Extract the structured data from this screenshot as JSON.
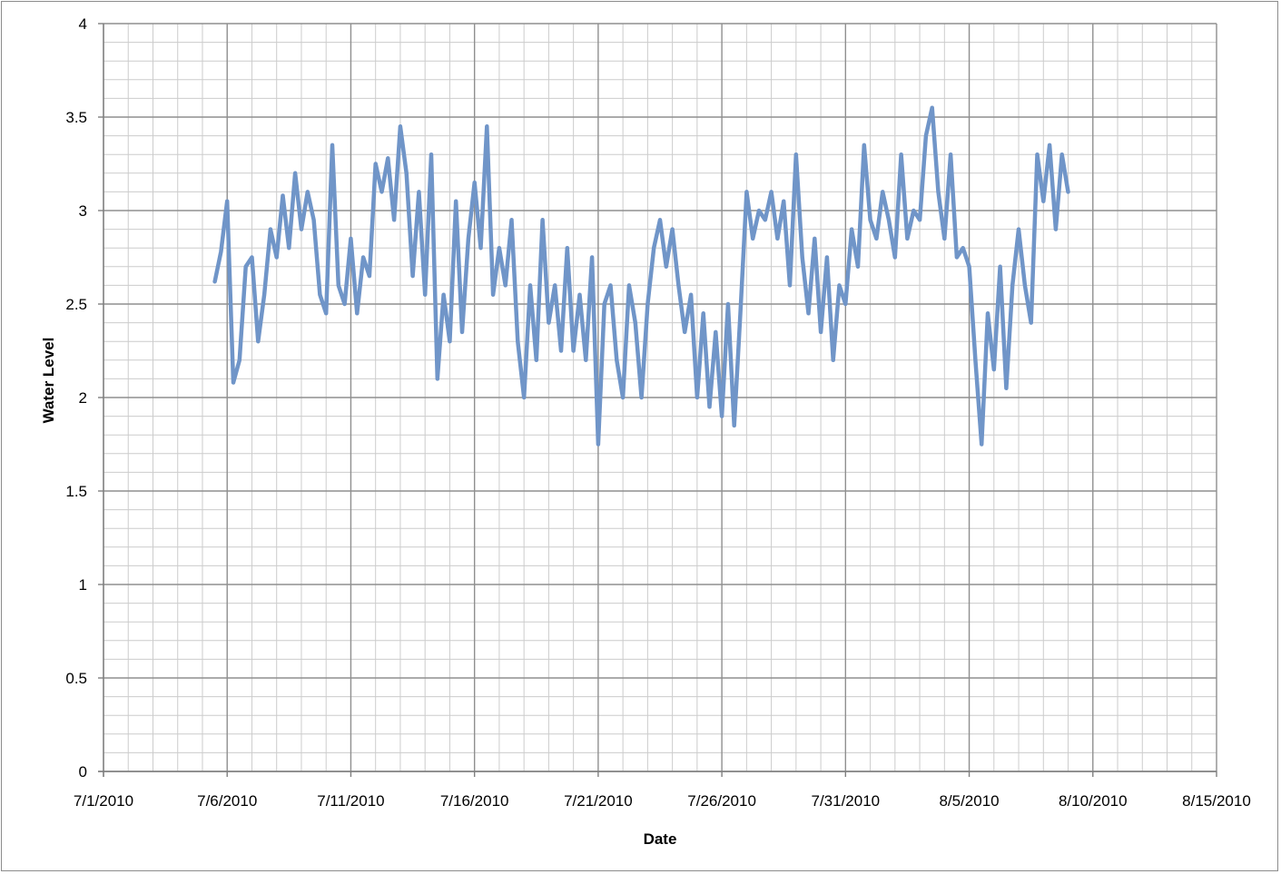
{
  "chart_data": {
    "type": "line",
    "title": "",
    "xlabel": "Date",
    "ylabel": "Water Level",
    "xlim": [
      "7/1/2010",
      "8/15/2010"
    ],
    "ylim": [
      0,
      4
    ],
    "x_major_step_days": 5,
    "x_minor_step_days": 1,
    "y_major_step": 0.5,
    "y_minor_step": 0.1,
    "grid": true,
    "legend": "none",
    "x_tick_labels": [
      "7/1/2010",
      "7/6/2010",
      "7/11/2010",
      "7/16/2010",
      "7/21/2010",
      "7/26/2010",
      "7/31/2010",
      "8/5/2010",
      "8/10/2010",
      "8/15/2010"
    ],
    "y_tick_labels": [
      "0",
      "0.5",
      "1",
      "1.5",
      "2",
      "2.5",
      "3",
      "3.5",
      "4"
    ],
    "colors": {
      "series": "#7095c8",
      "major_grid": "#8f8f8f",
      "minor_grid": "#cccccc",
      "axis": "#7f7f7f"
    },
    "series": [
      {
        "x": [
          "7/5/2010 12:00",
          "7/5/2010 18:00",
          "7/6/2010 00:00",
          "7/6/2010 06:00",
          "7/6/2010 12:00",
          "7/6/2010 18:00",
          "7/7/2010 00:00",
          "7/7/2010 06:00",
          "7/7/2010 12:00",
          "7/7/2010 18:00",
          "7/8/2010 00:00",
          "7/8/2010 06:00",
          "7/8/2010 12:00",
          "7/8/2010 18:00",
          "7/9/2010 00:00",
          "7/9/2010 06:00",
          "7/9/2010 12:00",
          "7/9/2010 18:00",
          "7/10/2010 00:00",
          "7/10/2010 06:00",
          "7/10/2010 12:00",
          "7/10/2010 18:00",
          "7/11/2010 00:00",
          "7/11/2010 06:00",
          "7/11/2010 12:00",
          "7/11/2010 18:00",
          "7/12/2010 00:00",
          "7/12/2010 06:00",
          "7/12/2010 12:00",
          "7/12/2010 18:00",
          "7/13/2010 00:00",
          "7/13/2010 06:00",
          "7/13/2010 12:00",
          "7/13/2010 18:00",
          "7/14/2010 00:00",
          "7/14/2010 06:00",
          "7/14/2010 12:00",
          "7/14/2010 18:00",
          "7/15/2010 00:00",
          "7/15/2010 06:00",
          "7/15/2010 12:00",
          "7/15/2010 18:00",
          "7/16/2010 00:00",
          "7/16/2010 06:00",
          "7/16/2010 12:00",
          "7/16/2010 18:00",
          "7/17/2010 00:00",
          "7/17/2010 06:00",
          "7/17/2010 12:00",
          "7/17/2010 18:00",
          "7/18/2010 00:00",
          "7/18/2010 06:00",
          "7/18/2010 12:00",
          "7/18/2010 18:00",
          "7/19/2010 00:00",
          "7/19/2010 06:00",
          "7/19/2010 12:00",
          "7/19/2010 18:00",
          "7/20/2010 00:00",
          "7/20/2010 06:00",
          "7/20/2010 12:00",
          "7/20/2010 18:00",
          "7/21/2010 00:00",
          "7/21/2010 06:00",
          "7/21/2010 12:00",
          "7/21/2010 18:00",
          "7/22/2010 00:00",
          "7/22/2010 06:00",
          "7/22/2010 12:00",
          "7/22/2010 18:00",
          "7/23/2010 00:00",
          "7/23/2010 06:00",
          "7/23/2010 12:00",
          "7/23/2010 18:00",
          "7/24/2010 00:00",
          "7/24/2010 06:00",
          "7/24/2010 12:00",
          "7/24/2010 18:00",
          "7/25/2010 00:00",
          "7/25/2010 06:00",
          "7/25/2010 12:00",
          "7/25/2010 18:00",
          "7/26/2010 00:00",
          "7/26/2010 06:00",
          "7/26/2010 12:00",
          "7/26/2010 18:00",
          "7/27/2010 00:00",
          "7/27/2010 06:00",
          "7/27/2010 12:00",
          "7/27/2010 18:00",
          "7/28/2010 00:00",
          "7/28/2010 06:00",
          "7/28/2010 12:00",
          "7/28/2010 18:00",
          "7/29/2010 00:00",
          "7/29/2010 06:00",
          "7/29/2010 12:00",
          "7/29/2010 18:00",
          "7/30/2010 00:00",
          "7/30/2010 06:00",
          "7/30/2010 12:00",
          "7/30/2010 18:00",
          "7/31/2010 00:00",
          "7/31/2010 06:00",
          "7/31/2010 12:00",
          "7/31/2010 18:00",
          "8/1/2010 00:00",
          "8/1/2010 06:00",
          "8/1/2010 12:00",
          "8/1/2010 18:00",
          "8/2/2010 00:00",
          "8/2/2010 06:00",
          "8/2/2010 12:00",
          "8/2/2010 18:00",
          "8/3/2010 00:00",
          "8/3/2010 06:00",
          "8/3/2010 12:00",
          "8/3/2010 18:00",
          "8/4/2010 00:00",
          "8/4/2010 06:00",
          "8/4/2010 12:00",
          "8/4/2010 18:00",
          "8/5/2010 00:00",
          "8/5/2010 06:00",
          "8/5/2010 12:00",
          "8/5/2010 18:00",
          "8/6/2010 00:00",
          "8/6/2010 06:00",
          "8/6/2010 12:00",
          "8/6/2010 18:00",
          "8/7/2010 00:00",
          "8/7/2010 06:00",
          "8/7/2010 12:00",
          "8/7/2010 18:00",
          "8/8/2010 00:00",
          "8/8/2010 06:00",
          "8/8/2010 12:00",
          "8/8/2010 18:00",
          "8/9/2010 00:00"
        ],
        "values": [
          2.62,
          2.78,
          3.05,
          2.08,
          2.2,
          2.7,
          2.75,
          2.3,
          2.55,
          2.9,
          2.75,
          3.08,
          2.8,
          3.2,
          2.9,
          3.1,
          2.95,
          2.55,
          2.45,
          3.35,
          2.6,
          2.5,
          2.85,
          2.45,
          2.75,
          2.65,
          3.25,
          3.1,
          3.28,
          2.95,
          3.45,
          3.2,
          2.65,
          3.1,
          2.55,
          3.3,
          2.1,
          2.55,
          2.3,
          3.05,
          2.35,
          2.85,
          3.15,
          2.8,
          3.45,
          2.55,
          2.8,
          2.6,
          2.95,
          2.3,
          2.0,
          2.6,
          2.2,
          2.95,
          2.4,
          2.6,
          2.25,
          2.8,
          2.25,
          2.55,
          2.2,
          2.75,
          1.75,
          2.5,
          2.6,
          2.2,
          2.0,
          2.6,
          2.4,
          2.0,
          2.5,
          2.8,
          2.95,
          2.7,
          2.9,
          2.6,
          2.35,
          2.55,
          2.0,
          2.45,
          1.95,
          2.35,
          1.9,
          2.5,
          1.85,
          2.45,
          3.1,
          2.85,
          3.0,
          2.95,
          3.1,
          2.85,
          3.05,
          2.6,
          3.3,
          2.75,
          2.45,
          2.85,
          2.35,
          2.75,
          2.2,
          2.6,
          2.5,
          2.9,
          2.7,
          3.35,
          2.95,
          2.85,
          3.1,
          2.95,
          2.75,
          3.3,
          2.85,
          3.0,
          2.95,
          3.4,
          3.55,
          3.1,
          2.85,
          3.3,
          2.75,
          2.8,
          2.7,
          2.2,
          1.75,
          2.45,
          2.15,
          2.7,
          2.05,
          2.6,
          2.9,
          2.6,
          2.4,
          3.3,
          3.05,
          3.35,
          2.9,
          3.3,
          3.1
        ]
      }
    ]
  }
}
